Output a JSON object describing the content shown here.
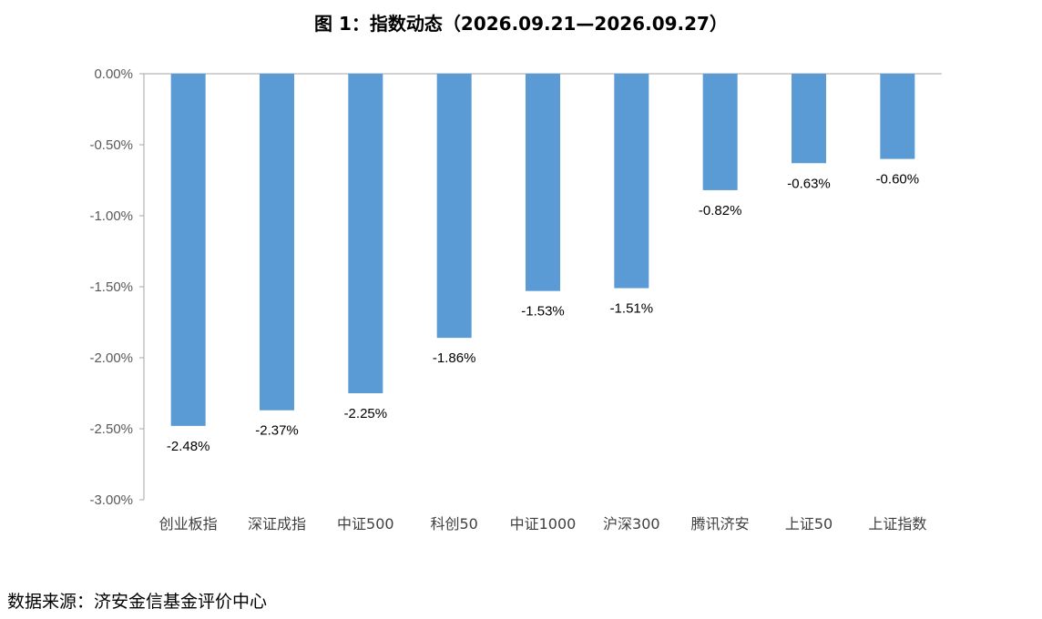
{
  "title": "图 1：指数动态（2026.09.21—2026.09.27）",
  "source": "数据来源：济安金信基金评价中心",
  "chart_data": {
    "type": "bar",
    "categories": [
      "创业板指",
      "深证成指",
      "中证500",
      "科创50",
      "中证1000",
      "沪深300",
      "腾讯济安",
      "上证50",
      "上证指数"
    ],
    "values": [
      -2.48,
      -2.37,
      -2.25,
      -1.86,
      -1.53,
      -1.51,
      -0.82,
      -0.63,
      -0.6
    ],
    "data_labels": [
      "-2.48%",
      "-2.37%",
      "-2.25%",
      "-1.86%",
      "-1.53%",
      "-1.51%",
      "-0.82%",
      "-0.63%",
      "-0.60%"
    ],
    "yticks": [
      0,
      -0.5,
      -1.0,
      -1.5,
      -2.0,
      -2.5,
      -3.0
    ],
    "ytick_labels": [
      "0.00%",
      "-0.50%",
      "-1.00%",
      "-1.50%",
      "-2.00%",
      "-2.50%",
      "-3.00%"
    ],
    "ylim": [
      -3.0,
      0
    ],
    "bar_color": "#5B9BD5",
    "grid": false
  }
}
